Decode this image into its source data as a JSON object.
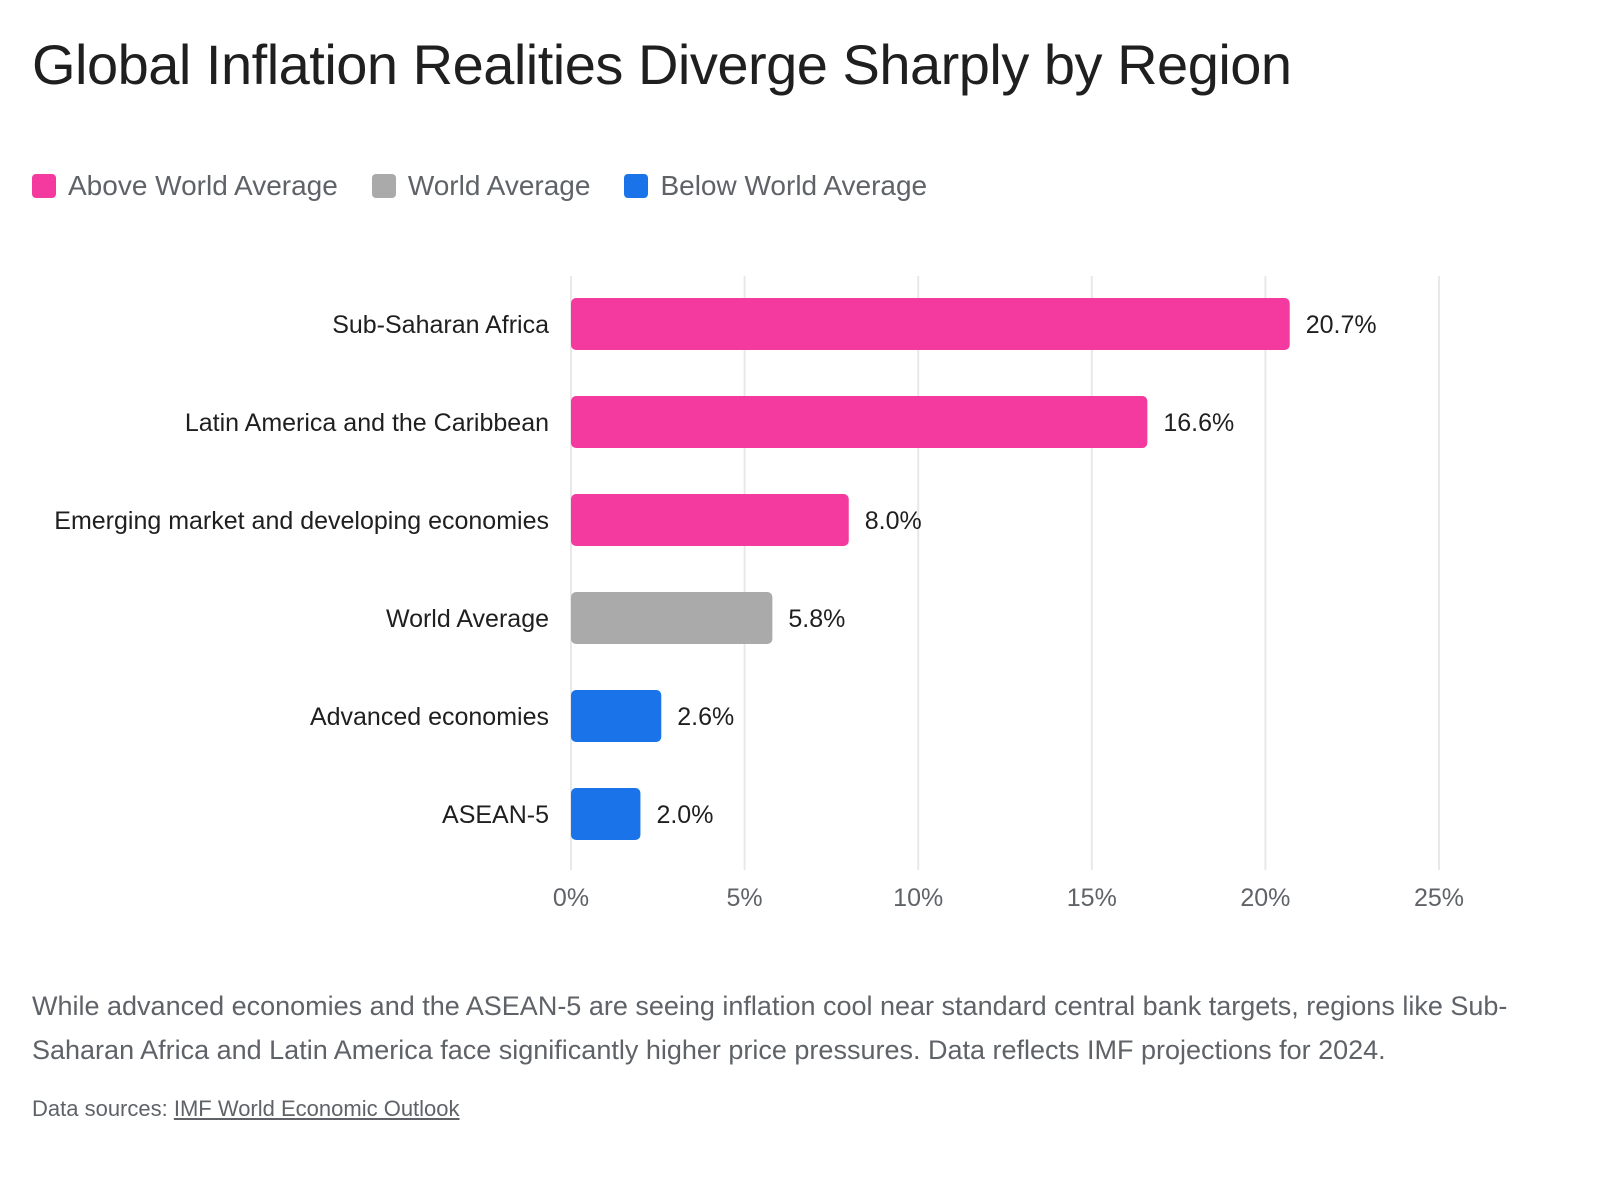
{
  "chart_data": {
    "type": "bar",
    "orientation": "horizontal",
    "title": "Global Inflation Realities Diverge Sharply by Region",
    "categories": [
      "Sub-Saharan Africa",
      "Latin America and the Caribbean",
      "Emerging market and developing economies",
      "World Average",
      "Advanced economies",
      "ASEAN-5"
    ],
    "values": [
      20.7,
      16.6,
      8.0,
      5.8,
      2.6,
      2.0
    ],
    "value_labels": [
      "20.7%",
      "16.6%",
      "8.0%",
      "5.8%",
      "2.6%",
      "2.0%"
    ],
    "groups": [
      "above",
      "above",
      "above",
      "world",
      "below",
      "below"
    ],
    "xlim": [
      0,
      25
    ],
    "xticks": [
      0,
      5,
      10,
      15,
      20,
      25
    ],
    "xtick_labels": [
      "0%",
      "5%",
      "10%",
      "15%",
      "20%",
      "25%"
    ],
    "grid": "vertical",
    "legend": {
      "placement": "top-left",
      "entries": [
        {
          "key": "above",
          "label": "Above World Average",
          "color": "#f43a9e"
        },
        {
          "key": "world",
          "label": "World Average",
          "color": "#aaaaaa"
        },
        {
          "key": "below",
          "label": "Below World Average",
          "color": "#1a73e8"
        }
      ]
    }
  },
  "caption": "While advanced economies and the ASEAN-5 are seeing inflation cool near standard central bank targets, regions like Sub-Saharan Africa and Latin America face significantly higher price pressures. Data reflects IMF projections for 2024.",
  "source": {
    "prefix": "Data sources: ",
    "link_text": "IMF World Economic Outlook"
  }
}
